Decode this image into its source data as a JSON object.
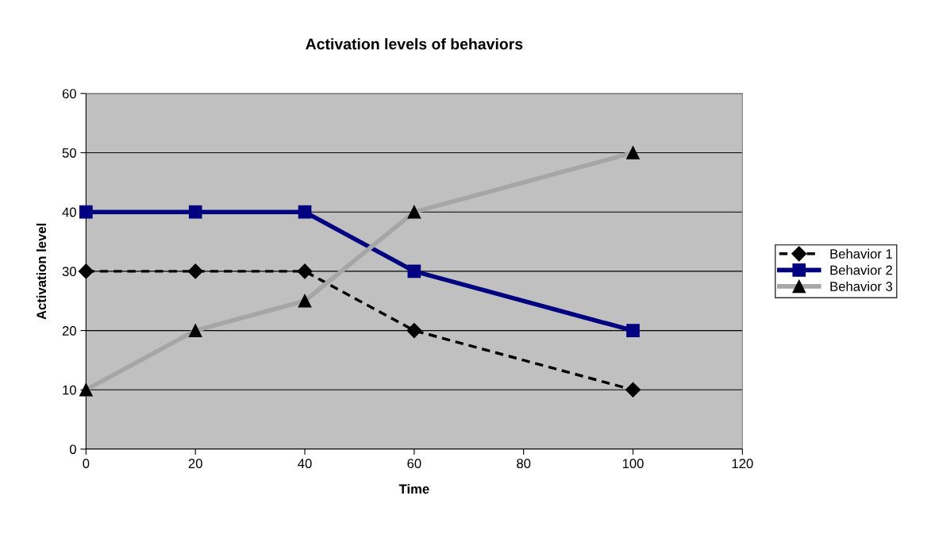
{
  "chart_data": {
    "type": "line",
    "title": "Activation levels of behaviors",
    "xlabel": "Time",
    "ylabel": "Activation level",
    "x": [
      0,
      20,
      40,
      60,
      100
    ],
    "series": [
      {
        "name": "Behavior 1",
        "color": "#000000",
        "values": [
          30,
          30,
          30,
          20,
          10
        ],
        "marker": "diamond",
        "line_style": "dashed"
      },
      {
        "name": "Behavior 2",
        "color": "#000080",
        "values": [
          40,
          40,
          40,
          30,
          20
        ],
        "marker": "square",
        "line_style": "solid"
      },
      {
        "name": "Behavior 3",
        "color": "#a6a6a6",
        "values": [
          10,
          20,
          25,
          40,
          50
        ],
        "marker": "triangle",
        "line_style": "solid"
      }
    ],
    "xlim": [
      0,
      120
    ],
    "xticks": [
      0,
      20,
      40,
      60,
      80,
      100,
      120
    ],
    "ylim": [
      0,
      60
    ],
    "yticks": [
      0,
      10,
      20,
      30,
      40,
      50,
      60
    ],
    "grid": "y",
    "legend": "right"
  }
}
